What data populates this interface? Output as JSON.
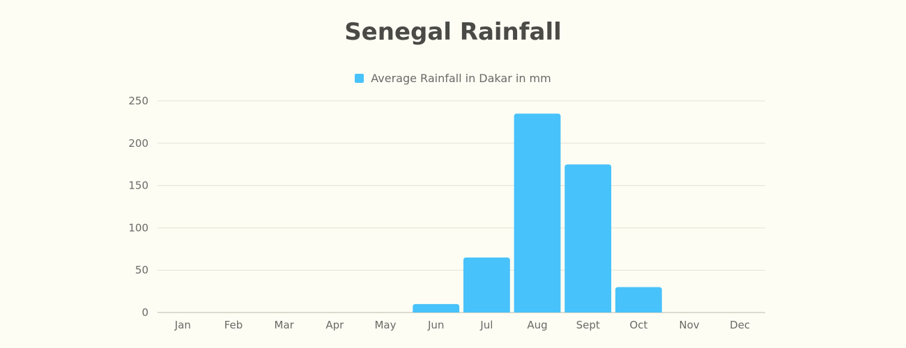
{
  "chart_data": {
    "type": "bar",
    "title": "Senegal Rainfall",
    "categories": [
      "Jan",
      "Feb",
      "Mar",
      "Apr",
      "May",
      "Jun",
      "Jul",
      "Aug",
      "Sept",
      "Oct",
      "Nov",
      "Dec"
    ],
    "series": [
      {
        "name": "Average Rainfall in Dakar in mm",
        "values": [
          0,
          0,
          0,
          0,
          0,
          10,
          65,
          235,
          175,
          30,
          0,
          0
        ]
      }
    ],
    "ylim": [
      0,
      250
    ],
    "yticks": [
      0,
      50,
      100,
      150,
      200,
      250
    ],
    "xlabel": "",
    "ylabel": "",
    "grid": true,
    "legend_position": "top-center",
    "colors": {
      "bar": "#48c2fb",
      "grid": "#e2e3d2",
      "axis": "#b9b9a8",
      "background": "#fdfdf4",
      "title": "#4a4a46",
      "text": "#6a6a66"
    }
  }
}
